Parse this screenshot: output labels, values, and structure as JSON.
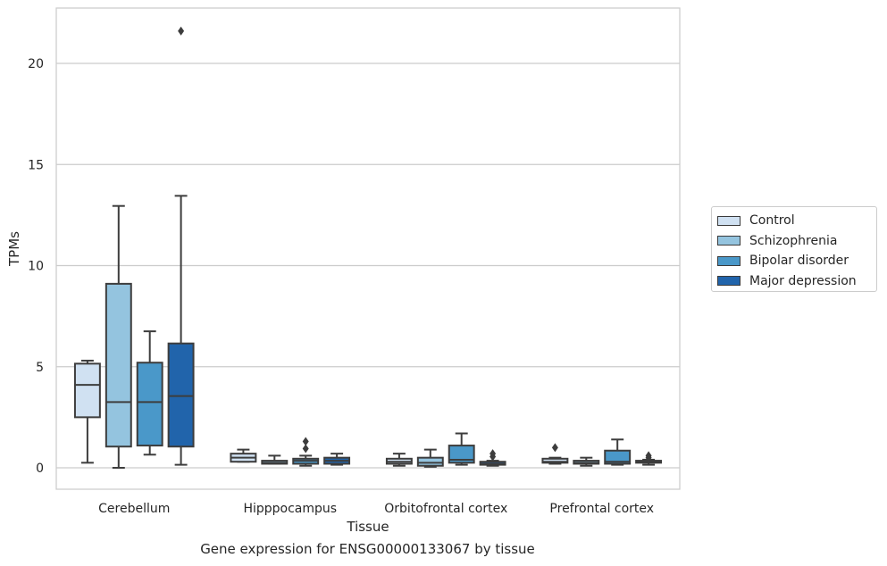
{
  "caption": "Gene expression for ENSG00000133067 by tissue",
  "chart_data": {
    "type": "boxplot",
    "xlabel": "Tissue",
    "ylabel": "TPMs",
    "ylim": [
      -1.05,
      22.6
    ],
    "yticks": [
      0,
      5,
      10,
      15,
      20
    ],
    "grid": "horizontal",
    "legend_position": "right",
    "categories": [
      "Cerebellum",
      "Hipppocampus",
      "Orbitofrontal cortex",
      "Prefrontal cortex"
    ],
    "series": [
      {
        "name": "Control",
        "color": "#d0e1f2",
        "boxes": [
          {
            "whislo": 0.25,
            "q1": 2.5,
            "med": 4.1,
            "q3": 5.15,
            "whishi": 5.3,
            "fliers": []
          },
          {
            "whislo": 0.3,
            "q1": 0.3,
            "med": 0.5,
            "q3": 0.7,
            "whishi": 0.9,
            "fliers": []
          },
          {
            "whislo": 0.1,
            "q1": 0.2,
            "med": 0.3,
            "q3": 0.45,
            "whishi": 0.7,
            "fliers": []
          },
          {
            "whislo": 0.2,
            "q1": 0.25,
            "med": 0.3,
            "q3": 0.45,
            "whishi": 0.5,
            "fliers": [
              1.0
            ]
          }
        ]
      },
      {
        "name": "Schizophrenia",
        "color": "#94c4df",
        "boxes": [
          {
            "whislo": 0.0,
            "q1": 1.05,
            "med": 3.25,
            "q3": 9.1,
            "whishi": 12.95,
            "fliers": []
          },
          {
            "whislo": 0.2,
            "q1": 0.2,
            "med": 0.25,
            "q3": 0.35,
            "whishi": 0.6,
            "fliers": []
          },
          {
            "whislo": 0.05,
            "q1": 0.1,
            "med": 0.25,
            "q3": 0.5,
            "whishi": 0.9,
            "fliers": []
          },
          {
            "whislo": 0.1,
            "q1": 0.2,
            "med": 0.25,
            "q3": 0.35,
            "whishi": 0.5,
            "fliers": []
          }
        ]
      },
      {
        "name": "Bipolar disorder",
        "color": "#4a98c9",
        "boxes": [
          {
            "whislo": 0.65,
            "q1": 1.1,
            "med": 3.25,
            "q3": 5.2,
            "whishi": 6.75,
            "fliers": []
          },
          {
            "whislo": 0.1,
            "q1": 0.2,
            "med": 0.35,
            "q3": 0.45,
            "whishi": 0.6,
            "fliers": [
              0.95,
              1.3
            ]
          },
          {
            "whislo": 0.15,
            "q1": 0.25,
            "med": 0.4,
            "q3": 1.1,
            "whishi": 1.7,
            "fliers": []
          },
          {
            "whislo": 0.15,
            "q1": 0.2,
            "med": 0.3,
            "q3": 0.85,
            "whishi": 1.4,
            "fliers": []
          }
        ]
      },
      {
        "name": "Major depression",
        "color": "#2164ab",
        "boxes": [
          {
            "whislo": 0.15,
            "q1": 1.05,
            "med": 3.55,
            "q3": 6.15,
            "whishi": 13.45,
            "fliers": [
              21.6
            ]
          },
          {
            "whislo": 0.15,
            "q1": 0.2,
            "med": 0.35,
            "q3": 0.5,
            "whishi": 0.7,
            "fliers": []
          },
          {
            "whislo": 0.1,
            "q1": 0.15,
            "med": 0.2,
            "q3": 0.3,
            "whishi": 0.35,
            "fliers": [
              0.55,
              0.7
            ]
          },
          {
            "whislo": 0.15,
            "q1": 0.25,
            "med": 0.3,
            "q3": 0.35,
            "whishi": 0.4,
            "fliers": [
              0.5,
              0.6
            ]
          }
        ]
      }
    ]
  }
}
